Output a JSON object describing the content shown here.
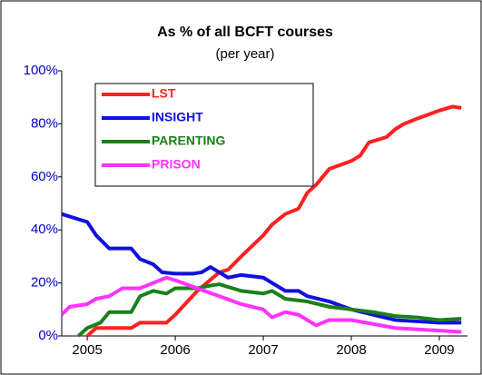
{
  "chart_data": {
    "type": "line",
    "title": "As % of all BCFT courses",
    "subtitle": "(per year)",
    "xlim": [
      2004.71,
      2009.32
    ],
    "xticks": [
      2005,
      2006,
      2007,
      2008,
      2009
    ],
    "ylim": [
      0,
      100
    ],
    "yticks": [
      {
        "value": 0,
        "label": "0%"
      },
      {
        "value": 20,
        "label": "20%"
      },
      {
        "value": 40,
        "label": "40%"
      },
      {
        "value": 60,
        "label": "60%"
      },
      {
        "value": 80,
        "label": "80%"
      },
      {
        "value": 100,
        "label": "100%"
      }
    ],
    "tick_label_color": "#0000cc",
    "series": [
      {
        "name": "LST",
        "color": "#ff2020",
        "x": [
          2005.0,
          2005.1,
          2005.5,
          2005.6,
          2005.9,
          2006.0,
          2006.25,
          2006.5,
          2006.6,
          2006.75,
          2007.0,
          2007.1,
          2007.25,
          2007.4,
          2007.5,
          2007.6,
          2007.75,
          2008.0,
          2008.1,
          2008.2,
          2008.4,
          2008.5,
          2008.6,
          2008.75,
          2009.0,
          2009.15,
          2009.25
        ],
        "values": [
          0,
          3,
          3,
          5,
          5,
          8,
          17,
          24,
          25,
          30,
          38,
          42,
          46,
          48,
          54,
          57,
          63,
          66,
          68,
          73,
          75,
          78,
          80,
          82,
          85,
          86.5,
          86
        ]
      },
      {
        "name": "INSIGHT",
        "color": "#1010e0",
        "x": [
          2004.71,
          2004.9,
          2005.0,
          2005.1,
          2005.25,
          2005.5,
          2005.6,
          2005.75,
          2005.85,
          2006.0,
          2006.2,
          2006.3,
          2006.4,
          2006.5,
          2006.6,
          2006.75,
          2007.0,
          2007.25,
          2007.4,
          2007.5,
          2007.75,
          2008.0,
          2008.25,
          2008.5,
          2008.75,
          2009.0,
          2009.25
        ],
        "values": [
          46,
          44,
          43,
          38,
          33,
          33,
          29,
          27,
          24,
          23.5,
          23.5,
          24,
          26,
          24,
          22,
          23,
          22,
          17,
          17,
          15,
          13,
          10,
          8,
          6,
          5.5,
          5,
          5
        ]
      },
      {
        "name": "PARENTING",
        "color": "#1a801a",
        "x": [
          2004.9,
          2005.0,
          2005.15,
          2005.25,
          2005.5,
          2005.6,
          2005.75,
          2005.9,
          2006.0,
          2006.25,
          2006.4,
          2006.5,
          2006.75,
          2007.0,
          2007.1,
          2007.25,
          2007.5,
          2007.75,
          2008.0,
          2008.25,
          2008.5,
          2008.75,
          2009.0,
          2009.25
        ],
        "values": [
          0,
          3,
          5,
          9,
          9,
          15,
          17,
          16,
          18,
          18,
          19,
          19.5,
          17,
          16,
          17,
          14,
          13,
          11,
          10,
          9,
          7.5,
          7,
          6,
          6.5
        ]
      },
      {
        "name": "PRISON",
        "color": "#ff33ff",
        "x": [
          2004.71,
          2004.8,
          2005.0,
          2005.1,
          2005.25,
          2005.4,
          2005.6,
          2005.75,
          2005.9,
          2006.0,
          2006.25,
          2006.5,
          2006.75,
          2007.0,
          2007.1,
          2007.25,
          2007.4,
          2007.6,
          2007.75,
          2008.0,
          2008.25,
          2008.5,
          2008.75,
          2009.0,
          2009.25
        ],
        "values": [
          8,
          11,
          12,
          14,
          15,
          18,
          18,
          20,
          22,
          21,
          18,
          15,
          12,
          10,
          7,
          9,
          8,
          4,
          6,
          6,
          4.5,
          3,
          2.5,
          2,
          1.5
        ]
      }
    ]
  }
}
